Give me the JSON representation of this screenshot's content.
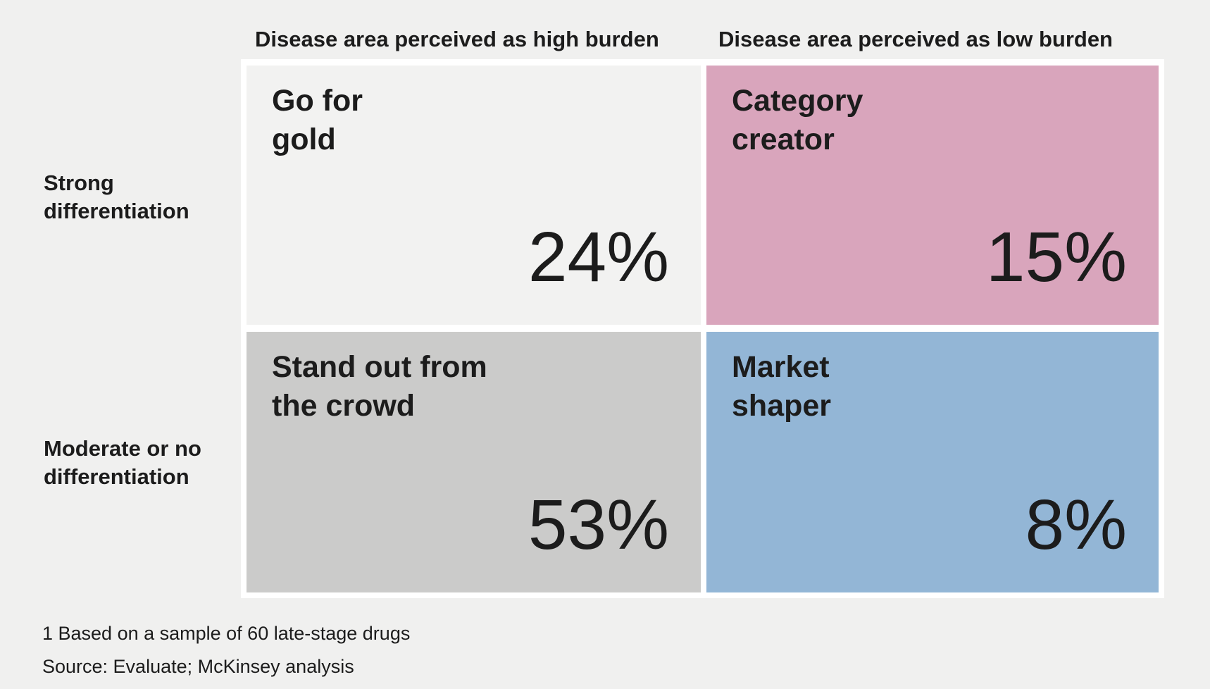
{
  "columns": {
    "high": "Disease area perceived as high burden",
    "low": "Disease area perceived as low burden"
  },
  "rows": {
    "strong": [
      "Strong",
      "differentiation"
    ],
    "moderate": [
      "Moderate or no",
      "differentiation"
    ]
  },
  "cells": {
    "go_for_gold": {
      "title": [
        "Go for",
        "gold"
      ],
      "value": "24%",
      "color": "#f2f2f1"
    },
    "category_creator": {
      "title": [
        "Category",
        "creator"
      ],
      "value": "15%",
      "color": "#d9a5bc"
    },
    "stand_out": {
      "title": [
        "Stand out from",
        "the crowd"
      ],
      "value": "53%",
      "color": "#cbcbca"
    },
    "market_shaper": {
      "title": [
        "Market",
        "shaper"
      ],
      "value": "8%",
      "color": "#93b6d6"
    }
  },
  "footnotes": {
    "note_1": "1 Based on a sample of 60 late-stage drugs",
    "source": "Source: Evaluate; McKinsey analysis"
  }
}
